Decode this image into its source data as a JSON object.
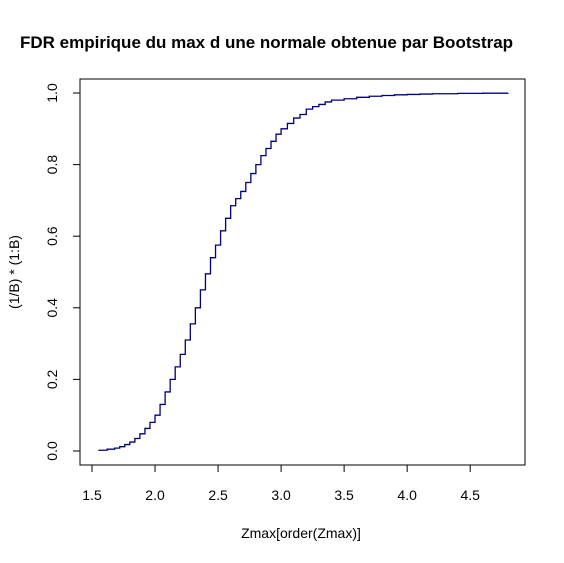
{
  "chart_data": {
    "type": "line",
    "title": "FDR empirique du max d une normale obtenue par Bootstrap",
    "xlabel": "Zmax[order(Zmax)]",
    "ylabel": "(1/B) * (1:B)",
    "xlim": [
      1.5,
      4.8
    ],
    "ylim": [
      0.0,
      1.0
    ],
    "x_ticks": [
      "1.5",
      "2.0",
      "2.5",
      "3.0",
      "3.5",
      "4.0",
      "4.5"
    ],
    "y_ticks": [
      "0.0",
      "0.2",
      "0.4",
      "0.6",
      "0.8",
      "1.0"
    ],
    "grid": false,
    "legend": "none",
    "line_style": "step",
    "series": [
      {
        "color": "#00007f",
        "x": [
          1.55,
          1.62,
          1.68,
          1.72,
          1.76,
          1.8,
          1.84,
          1.88,
          1.92,
          1.96,
          2.0,
          2.04,
          2.08,
          2.12,
          2.16,
          2.2,
          2.24,
          2.28,
          2.32,
          2.36,
          2.4,
          2.44,
          2.48,
          2.52,
          2.56,
          2.6,
          2.64,
          2.68,
          2.72,
          2.76,
          2.8,
          2.84,
          2.88,
          2.92,
          2.96,
          3.0,
          3.05,
          3.1,
          3.15,
          3.2,
          3.25,
          3.3,
          3.35,
          3.4,
          3.5,
          3.6,
          3.7,
          3.8,
          3.9,
          4.0,
          4.1,
          4.2,
          4.4,
          4.6,
          4.8
        ],
        "y": [
          0.002,
          0.005,
          0.008,
          0.012,
          0.018,
          0.025,
          0.035,
          0.048,
          0.063,
          0.08,
          0.1,
          0.13,
          0.165,
          0.2,
          0.235,
          0.27,
          0.31,
          0.355,
          0.4,
          0.45,
          0.495,
          0.54,
          0.575,
          0.615,
          0.65,
          0.685,
          0.705,
          0.725,
          0.75,
          0.775,
          0.8,
          0.825,
          0.845,
          0.865,
          0.885,
          0.9,
          0.915,
          0.93,
          0.94,
          0.955,
          0.962,
          0.968,
          0.975,
          0.98,
          0.984,
          0.988,
          0.991,
          0.993,
          0.995,
          0.996,
          0.997,
          0.998,
          0.999,
          0.9995,
          1.0
        ]
      }
    ]
  }
}
